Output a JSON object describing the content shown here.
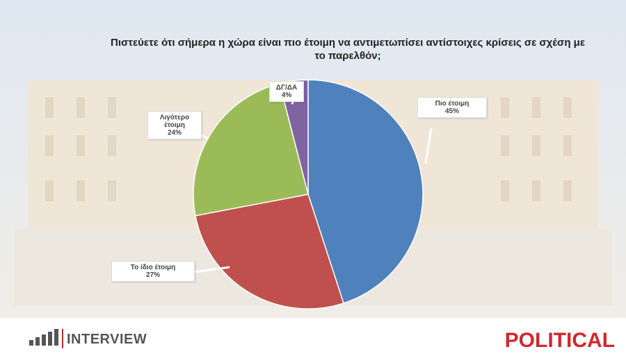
{
  "chart_data": {
    "type": "pie",
    "title": "Πιστεύετε ότι σήμερα η χώρα είναι πιο έτοιμη να αντιμετωπίσει αντίστοιχες κρίσεις σε σχέση με το παρελθόν;",
    "categories": [
      "Πιο έτοιμη",
      "Το ίδιο έτοιμη",
      "Λιγότερο έτοιμη",
      "ΔΓ/ΔΑ"
    ],
    "values": [
      45,
      27,
      24,
      4
    ],
    "value_labels": [
      "45%",
      "27%",
      "24%",
      "4%"
    ],
    "colors": [
      "#4f81bd",
      "#c0504d",
      "#9bbb59",
      "#8064a2"
    ]
  },
  "footer": {
    "left_logo": "INTERVIEW",
    "right_logo": "POLITICAL"
  }
}
